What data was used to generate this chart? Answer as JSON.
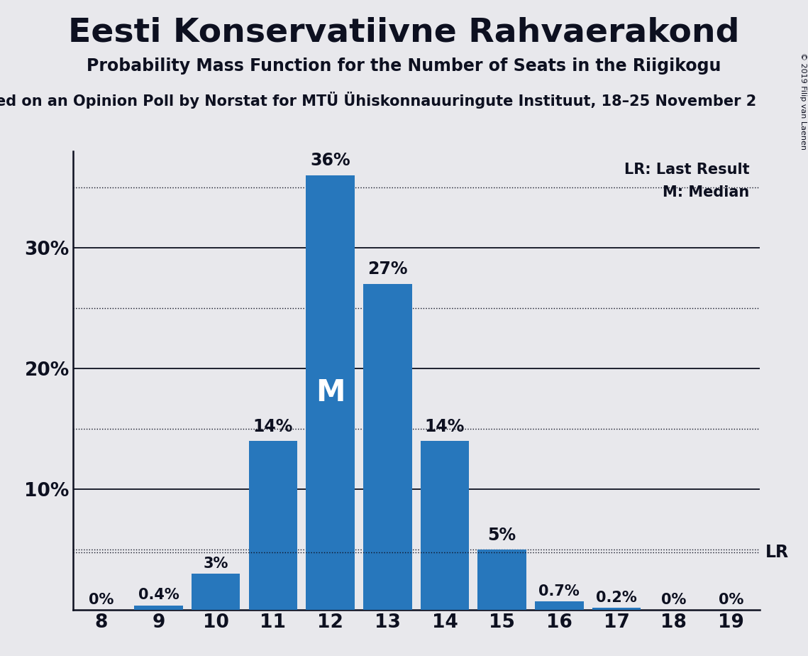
{
  "title": "Eesti Konservatiivne Rahvaerakond",
  "subtitle": "Probability Mass Function for the Number of Seats in the Riigikogu",
  "subsubtitle": "ed on an Opinion Poll by Norstat for MTÜ Ühiskonnauuringute Instituut, 18–25 November 2",
  "copyright": "© 2019 Filip van Laenen",
  "seats": [
    8,
    9,
    10,
    11,
    12,
    13,
    14,
    15,
    16,
    17,
    18,
    19
  ],
  "probabilities": [
    0.0,
    0.4,
    3.0,
    14.0,
    36.0,
    27.0,
    14.0,
    5.0,
    0.7,
    0.2,
    0.0,
    0.0
  ],
  "bar_color": "#2777BC",
  "background_color": "#E8E8EC",
  "median_seat": 12,
  "lr_value": 4.8,
  "ylim": [
    0,
    38
  ],
  "legend_lr": "LR: Last Result",
  "legend_m": "M: Median",
  "solid_gridlines": [
    10,
    20,
    30
  ],
  "dotted_gridlines": [
    5,
    15,
    25,
    35
  ],
  "yticks": [
    10,
    20,
    30
  ],
  "title_fontsize": 34,
  "subtitle_fontsize": 17,
  "subsubtitle_fontsize": 15,
  "axis_tick_fontsize": 19,
  "bar_label_fontsize": 17,
  "bar_label_small_fontsize": 15,
  "median_label_fontsize": 30,
  "legend_fontsize": 15,
  "lr_label_fontsize": 17,
  "copyright_fontsize": 8
}
